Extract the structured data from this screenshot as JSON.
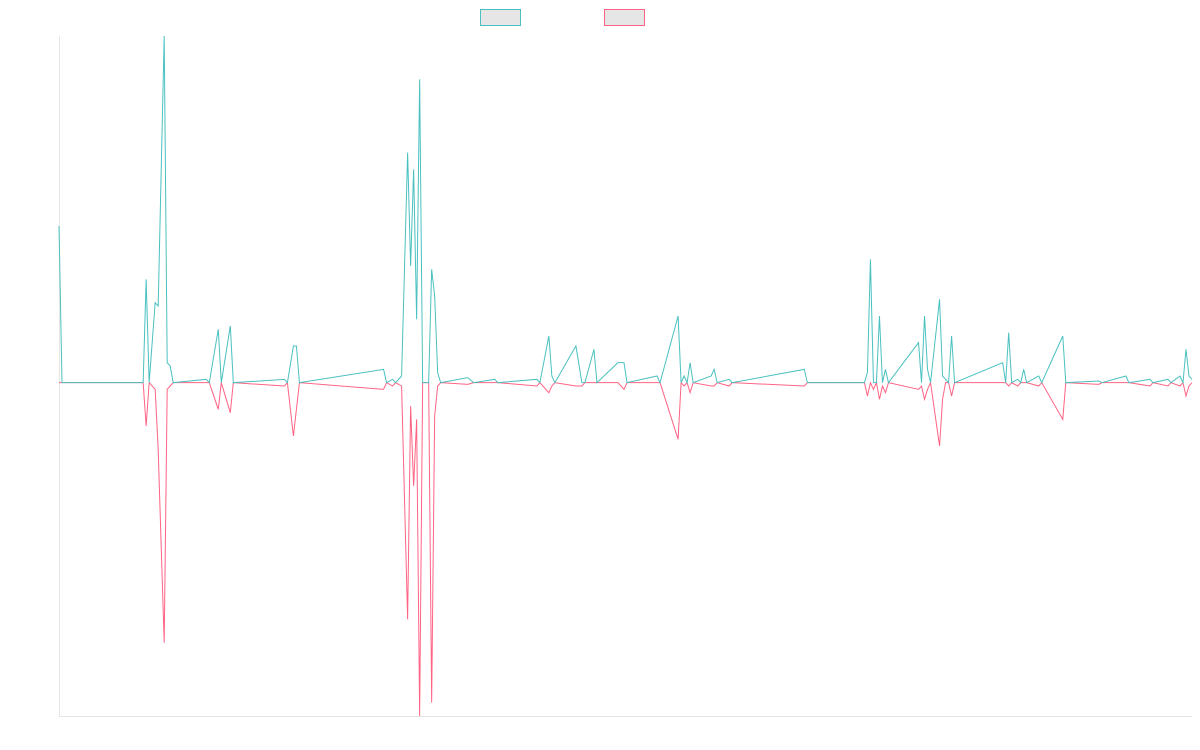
{
  "chart_data": {
    "type": "line",
    "x": [
      0,
      1,
      28,
      29,
      30,
      32,
      33,
      35,
      36,
      37,
      38,
      49,
      50,
      53,
      54,
      57,
      58,
      75,
      76,
      78,
      79,
      80,
      108,
      109,
      111,
      112,
      114,
      116,
      117,
      118,
      119,
      120,
      121,
      123,
      124,
      125,
      126,
      127,
      136,
      138,
      145,
      146,
      159,
      160,
      163,
      164,
      165,
      172,
      174,
      175,
      178,
      179,
      186,
      188,
      189,
      199,
      200,
      206,
      207,
      208,
      209,
      210,
      211,
      217,
      218,
      219,
      223,
      224,
      248,
      249,
      268,
      269,
      270,
      271,
      272,
      273,
      274,
      275,
      276,
      286,
      287,
      288,
      289,
      290,
      293,
      294,
      295,
      296,
      297,
      298,
      314,
      315,
      316,
      317,
      319,
      320,
      321,
      322,
      326,
      327,
      334,
      335,
      346,
      347,
      355,
      356,
      363,
      364,
      369,
      370,
      373,
      374,
      375,
      376,
      377
    ],
    "series": [
      {
        "color": "#4bc0c0",
        "values": [
          47,
          0,
          0,
          31,
          0,
          24,
          23,
          104,
          6,
          5,
          0,
          1,
          0,
          16,
          0,
          17,
          0,
          1,
          0,
          11,
          11,
          0,
          4,
          0,
          1,
          0,
          2,
          69,
          35,
          64,
          19,
          91,
          0,
          0,
          34,
          26,
          3,
          0,
          1.5,
          0,
          1,
          0,
          1,
          0,
          14,
          2,
          0,
          11,
          0,
          0,
          10,
          0,
          6,
          6,
          0,
          2,
          0,
          20,
          0,
          2,
          0,
          6,
          0,
          2,
          4,
          0,
          1,
          0,
          4,
          0,
          0,
          3,
          37,
          0,
          0,
          20,
          0,
          4,
          0,
          12,
          0,
          20,
          4,
          0,
          25,
          2,
          1,
          0,
          14,
          0,
          6,
          0,
          15,
          0,
          1,
          0,
          4,
          0,
          2,
          0,
          14,
          0,
          0.5,
          0,
          2,
          0,
          1,
          0,
          1,
          0,
          2,
          0,
          10,
          2,
          1
        ]
      },
      {
        "color": "#ff6384",
        "values": [
          0,
          0,
          0,
          -13,
          0,
          -2,
          -20,
          -78,
          -2,
          -1,
          0,
          0,
          0,
          -8,
          0,
          -9,
          0,
          -1,
          0,
          -16,
          -8,
          0,
          -2,
          0,
          -1,
          0,
          -1,
          -71,
          -7,
          -31,
          -11,
          -100,
          0,
          0,
          -96,
          -10,
          -1,
          0,
          -0.5,
          0,
          0,
          0,
          -1,
          0,
          -3,
          -1,
          0,
          -1,
          -1,
          0,
          0,
          0,
          0,
          -2,
          0,
          0,
          0,
          -17,
          0,
          -1,
          0,
          -3,
          0,
          -1,
          -1,
          0,
          -1,
          0,
          -1,
          0,
          0,
          -4,
          0,
          -2,
          0,
          -5,
          -1,
          -3,
          0,
          -2,
          -1,
          -5,
          -2,
          0,
          -19,
          -5,
          0,
          0,
          -4,
          0,
          0,
          0,
          -1,
          0,
          -1,
          0,
          0,
          0,
          -1,
          0,
          -11,
          0,
          -0.5,
          0,
          0,
          0,
          -1,
          0,
          -1,
          0,
          -1,
          0,
          -4,
          -1,
          0
        ]
      }
    ],
    "xlim": [
      0,
      377
    ],
    "ylim": [
      -100,
      104
    ]
  }
}
